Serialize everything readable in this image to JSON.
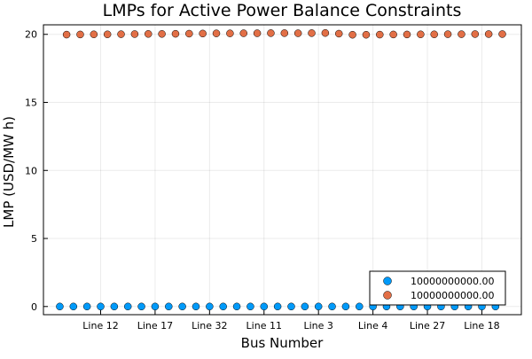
{
  "chart_data": {
    "type": "scatter",
    "title": "LMPs for Active Power Balance Constraints",
    "xlabel": "Bus Number",
    "ylabel": "LMP (USD/MW h)",
    "x_tick_labels": [
      "Line 12",
      "Line 17",
      "Line 32",
      "Line 11",
      "Line 3",
      "Line 4",
      "Line 27",
      "Line 18"
    ],
    "x_tick_index": [
      4,
      8,
      12,
      16,
      20,
      24,
      28,
      32
    ],
    "y_ticks": [
      0,
      5,
      10,
      15,
      20
    ],
    "ylim": [
      -0.6,
      20.7
    ],
    "xlim": [
      -0.2,
      34.9
    ],
    "grid": true,
    "legend_position": "bottom-right",
    "series": [
      {
        "name": "10000000000.00",
        "color": "#009AFA",
        "x": [
          1,
          2,
          3,
          4,
          5,
          6,
          7,
          8,
          9,
          10,
          11,
          12,
          13,
          14,
          15,
          16,
          17,
          18,
          19,
          20,
          21,
          22,
          23,
          24,
          25,
          26,
          27,
          28,
          29,
          30,
          31,
          32,
          33
        ],
        "values": [
          0,
          0,
          0,
          0,
          0,
          0,
          0,
          0,
          0,
          0,
          0,
          0,
          0,
          0,
          0,
          0,
          0,
          0,
          0,
          0,
          0,
          0,
          0,
          0,
          0,
          0,
          0,
          0,
          0,
          0,
          0,
          0,
          0
        ]
      },
      {
        "name": "10000000000.00",
        "color": "#E26F46",
        "x": [
          1.5,
          2.5,
          3.5,
          4.5,
          5.5,
          6.5,
          7.5,
          8.5,
          9.5,
          10.5,
          11.5,
          12.5,
          13.5,
          14.5,
          15.5,
          16.5,
          17.5,
          18.5,
          19.5,
          20.5,
          21.5,
          22.5,
          23.5,
          24.5,
          25.5,
          26.5,
          27.5,
          28.5,
          29.5,
          30.5,
          31.5,
          32.5,
          33.5
        ],
        "values": [
          19.98,
          19.99,
          20.0,
          20.0,
          20.01,
          20.02,
          20.03,
          20.03,
          20.04,
          20.05,
          20.06,
          20.07,
          20.07,
          20.08,
          20.08,
          20.09,
          20.09,
          20.08,
          20.09,
          20.1,
          20.05,
          19.97,
          19.97,
          19.98,
          19.99,
          19.99,
          20.0,
          20.0,
          20.01,
          20.01,
          20.02,
          20.02,
          20.02
        ]
      }
    ]
  }
}
